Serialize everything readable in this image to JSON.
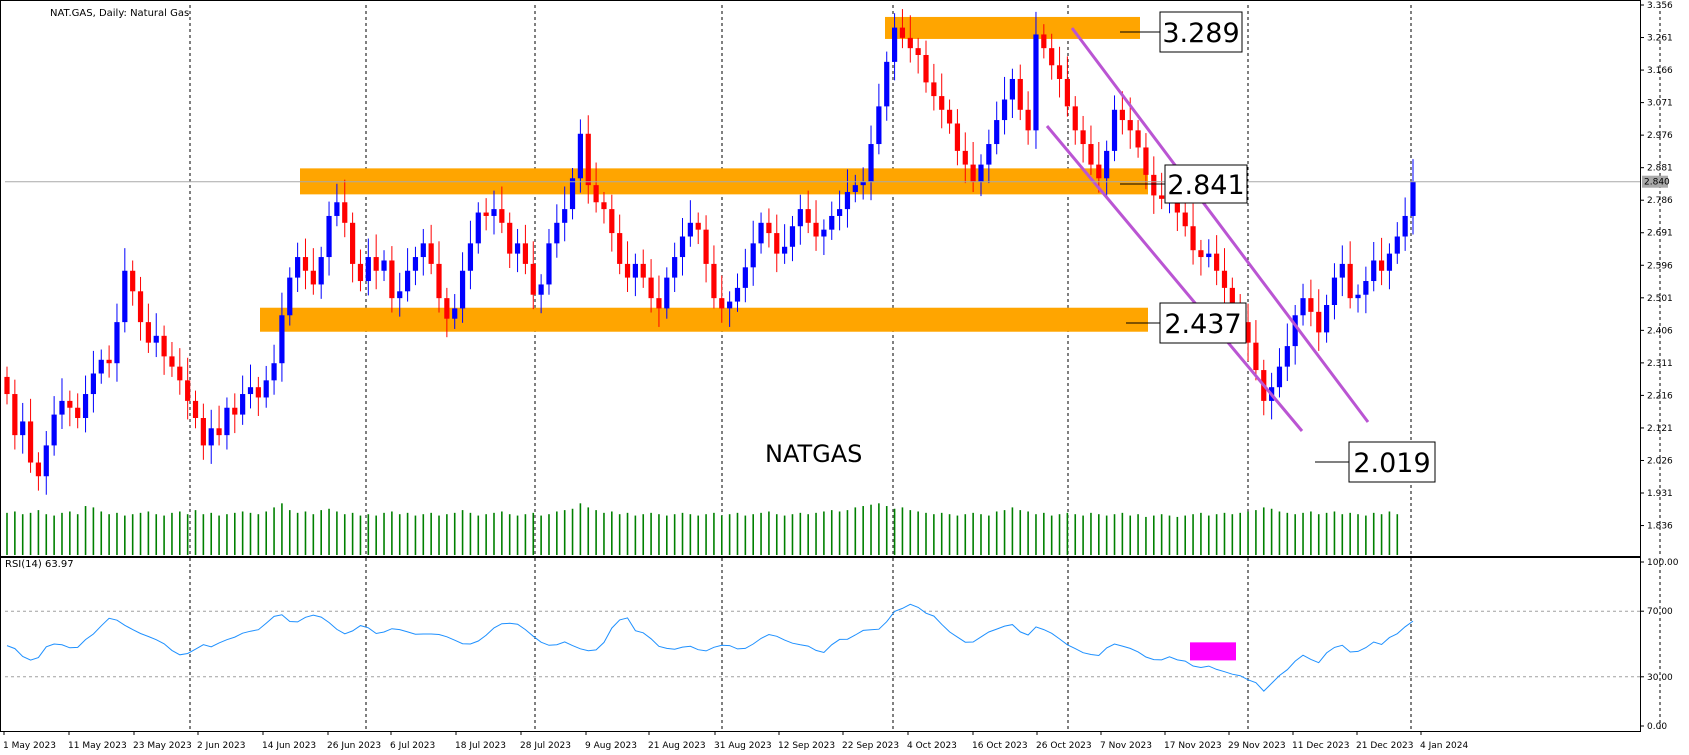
{
  "header": {
    "symbol_label": "NAT.GAS, Daily:  Natural Gas",
    "rsi_label": "RSI(14) 63.97"
  },
  "overlay": {
    "symbol_text": "NATGAS",
    "levels": [
      {
        "value": 3.289,
        "label": "3.289"
      },
      {
        "value": 2.841,
        "label": "2.841"
      },
      {
        "value": 2.437,
        "label": "2.437"
      },
      {
        "value": 2.019,
        "label": "2.019"
      }
    ],
    "zone_color": "#FFA500",
    "channel_color": "#BA55D3",
    "rsi_highlight_color": "#FF00FF"
  },
  "colors": {
    "bull": "#0000FF",
    "bear": "#FF0000",
    "volume": "#008000",
    "rsi_line": "#1E90FF",
    "grid": "#000000",
    "current_price": "#A9A9A9"
  },
  "chart_data": [
    {
      "type": "candlestick",
      "title": "NAT.GAS, Daily:  Natural Gas",
      "ylim": [
        1.75,
        3.356
      ],
      "y_ticks": [
        "3.356",
        "3.261",
        "3.166",
        "3.071",
        "2.976",
        "2.881",
        "2.786",
        "2.691",
        "2.596",
        "2.501",
        "2.406",
        "2.311",
        "2.216",
        "2.121",
        "2.026",
        "1.931",
        "1.836"
      ],
      "x_ticks": [
        "1 May 2023",
        "11 May 2023",
        "23 May 2023",
        "2 Jun 2023",
        "14 Jun 2023",
        "26 Jun 2023",
        "6 Jul 2023",
        "18 Jul 2023",
        "28 Jul 2023",
        "9 Aug 2023",
        "21 Aug 2023",
        "31 Aug 2023",
        "12 Sep 2023",
        "22 Sep 2023",
        "4 Oct 2023",
        "16 Oct 2023",
        "26 Oct 2023",
        "7 Nov 2023",
        "17 Nov 2023",
        "29 Nov 2023",
        "11 Dec 2023",
        "21 Dec 2023",
        "4 Jan 2024"
      ],
      "current_price": "2.840",
      "close": [
        2.22,
        2.1,
        2.14,
        2.02,
        1.98,
        2.07,
        2.16,
        2.2,
        2.18,
        2.15,
        2.22,
        2.28,
        2.32,
        2.31,
        2.43,
        2.58,
        2.52,
        2.43,
        2.37,
        2.39,
        2.33,
        2.3,
        2.26,
        2.2,
        2.15,
        2.07,
        2.12,
        2.1,
        2.18,
        2.16,
        2.22,
        2.24,
        2.21,
        2.26,
        2.31,
        2.45,
        2.56,
        2.62,
        2.58,
        2.54,
        2.62,
        2.74,
        2.78,
        2.72,
        2.6,
        2.55,
        2.62,
        2.58,
        2.61,
        2.5,
        2.52,
        2.58,
        2.62,
        2.66,
        2.6,
        2.5,
        2.44,
        2.47,
        2.58,
        2.66,
        2.75,
        2.74,
        2.76,
        2.72,
        2.63,
        2.66,
        2.6,
        2.51,
        2.54,
        2.66,
        2.72,
        2.76,
        2.85,
        2.98,
        2.83,
        2.78,
        2.76,
        2.69,
        2.6,
        2.56,
        2.6,
        2.56,
        2.5,
        2.47,
        2.56,
        2.62,
        2.68,
        2.72,
        2.7,
        2.6,
        2.5,
        2.47,
        2.49,
        2.53,
        2.59,
        2.66,
        2.72,
        2.69,
        2.63,
        2.65,
        2.71,
        2.76,
        2.72,
        2.68,
        2.7,
        2.74,
        2.76,
        2.81,
        2.83,
        2.84,
        2.95,
        3.06,
        3.19,
        3.29,
        3.26,
        3.23,
        3.21,
        3.13,
        3.09,
        3.05,
        3.01,
        2.93,
        2.89,
        2.84,
        2.89,
        2.95,
        3.02,
        3.08,
        3.14,
        3.05,
        2.99,
        3.27,
        3.23,
        3.18,
        3.14,
        3.06,
        2.99,
        2.95,
        2.89,
        2.85,
        2.93,
        3.05,
        3.02,
        2.99,
        2.94,
        2.86,
        2.8,
        2.79,
        2.83,
        2.75,
        2.71,
        2.64,
        2.62,
        2.63,
        2.58,
        2.53,
        2.47,
        2.43,
        2.37,
        2.29,
        2.2,
        2.24,
        2.3,
        2.36,
        2.45,
        2.5,
        2.46,
        2.4,
        2.48,
        2.56,
        2.6,
        2.5,
        2.51,
        2.55,
        2.61,
        2.58,
        2.63,
        2.68,
        2.74,
        2.84
      ]
    },
    {
      "type": "bar",
      "title": "Volume",
      "values": [
        0.62,
        0.64,
        0.6,
        0.62,
        0.66,
        0.6,
        0.58,
        0.62,
        0.64,
        0.6,
        0.72,
        0.7,
        0.64,
        0.6,
        0.62,
        0.58,
        0.6,
        0.62,
        0.64,
        0.6,
        0.58,
        0.62,
        0.64,
        0.6,
        0.66,
        0.6,
        0.62,
        0.58,
        0.6,
        0.62,
        0.64,
        0.62,
        0.6,
        0.64,
        0.7,
        0.76,
        0.66,
        0.62,
        0.64,
        0.6,
        0.66,
        0.68,
        0.64,
        0.6,
        0.62,
        0.58,
        0.6,
        0.58,
        0.62,
        0.64,
        0.6,
        0.62,
        0.58,
        0.6,
        0.62,
        0.58,
        0.6,
        0.62,
        0.66,
        0.62,
        0.58,
        0.6,
        0.62,
        0.64,
        0.6,
        0.58,
        0.6,
        0.62,
        0.58,
        0.6,
        0.64,
        0.66,
        0.68,
        0.76,
        0.7,
        0.66,
        0.62,
        0.64,
        0.6,
        0.62,
        0.58,
        0.6,
        0.62,
        0.6,
        0.58,
        0.6,
        0.62,
        0.6,
        0.58,
        0.6,
        0.62,
        0.58,
        0.6,
        0.62,
        0.58,
        0.6,
        0.62,
        0.64,
        0.6,
        0.58,
        0.6,
        0.62,
        0.6,
        0.62,
        0.64,
        0.66,
        0.64,
        0.66,
        0.7,
        0.72,
        0.74,
        0.76,
        0.72,
        0.68,
        0.7,
        0.66,
        0.64,
        0.62,
        0.6,
        0.62,
        0.6,
        0.58,
        0.6,
        0.62,
        0.6,
        0.58,
        0.64,
        0.66,
        0.7,
        0.66,
        0.64,
        0.6,
        0.62,
        0.58,
        0.6,
        0.62,
        0.6,
        0.58,
        0.62,
        0.6,
        0.58,
        0.6,
        0.62,
        0.58,
        0.6,
        0.56,
        0.58,
        0.6,
        0.58,
        0.56,
        0.58,
        0.6,
        0.62,
        0.58,
        0.6,
        0.62,
        0.6,
        0.62,
        0.64,
        0.66,
        0.7,
        0.68,
        0.64,
        0.62,
        0.6,
        0.62,
        0.64,
        0.6,
        0.62,
        0.64,
        0.6,
        0.62,
        0.6,
        0.58,
        0.62,
        0.6,
        0.64,
        0.6
      ]
    },
    {
      "type": "line",
      "title": "RSI(14) 63.97",
      "ylim": [
        0,
        100
      ],
      "y_ticks": [
        "100.00",
        "70.00",
        "30.00",
        "0.00"
      ],
      "values": [
        49.0,
        47.2,
        42.4,
        40.2,
        41.7,
        48.3,
        50.0,
        49.5,
        47.7,
        47.9,
        52.7,
        56.1,
        61.1,
        65.7,
        64.5,
        61.4,
        58.8,
        56.4,
        54.6,
        52.6,
        50.1,
        46.1,
        43.4,
        44.2,
        46.8,
        49.6,
        48.3,
        50.7,
        52.6,
        54.2,
        56.6,
        57.8,
        58.7,
        62.7,
        66.8,
        67.8,
        63.7,
        63.5,
        66.3,
        67.6,
        66.4,
        63.1,
        58.9,
        56.2,
        58.0,
        61.2,
        59.9,
        56.4,
        57.3,
        59.3,
        58.8,
        57.4,
        56.0,
        56.1,
        56.1,
        55.8,
        54.4,
        52.3,
        50.2,
        50.0,
        51.8,
        55.3,
        59.8,
        62.4,
        62.6,
        62.1,
        58.8,
        54.7,
        51.1,
        49.2,
        49.6,
        51.3,
        49.0,
        47.1,
        45.9,
        46.4,
        51.0,
        59.7,
        64.7,
        65.9,
        58.1,
        56.8,
        53.2,
        48.6,
        47.3,
        46.8,
        48.1,
        48.6,
        46.5,
        45.8,
        48.0,
        49.2,
        49.0,
        47.0,
        47.3,
        50.0,
        53.4,
        55.8,
        54.7,
        52.4,
        50.5,
        49.5,
        48.7,
        46.1,
        44.8,
        49.5,
        52.8,
        52.9,
        55.5,
        58.3,
        58.7,
        59.0,
        63.6,
        69.9,
        71.7,
        74.2,
        72.3,
        68.8,
        67.0,
        62.0,
        57.4,
        54.2,
        51.1,
        51.2,
        54.3,
        57.3,
        59.1,
        60.9,
        61.8,
        57.4,
        55.5,
        60.4,
        58.8,
        56.5,
        53.1,
        49.5,
        47.2,
        44.7,
        43.6,
        43.0,
        47.6,
        50.0,
        48.7,
        47.3,
        45.2,
        42.1,
        40.5,
        40.3,
        42.2,
        40.3,
        39.6,
        36.6,
        35.7,
        36.5,
        34.5,
        33.1,
        31.6,
        30.7,
        28.2,
        26.4,
        21.3,
        26.0,
        30.8,
        34.3,
        39.6,
        43.2,
        40.6,
        38.6,
        44.6,
        47.9,
        49.2,
        45.1,
        45.5,
        47.8,
        51.2,
        49.7,
        53.9,
        56.3,
        60.5,
        63.97
      ]
    }
  ]
}
